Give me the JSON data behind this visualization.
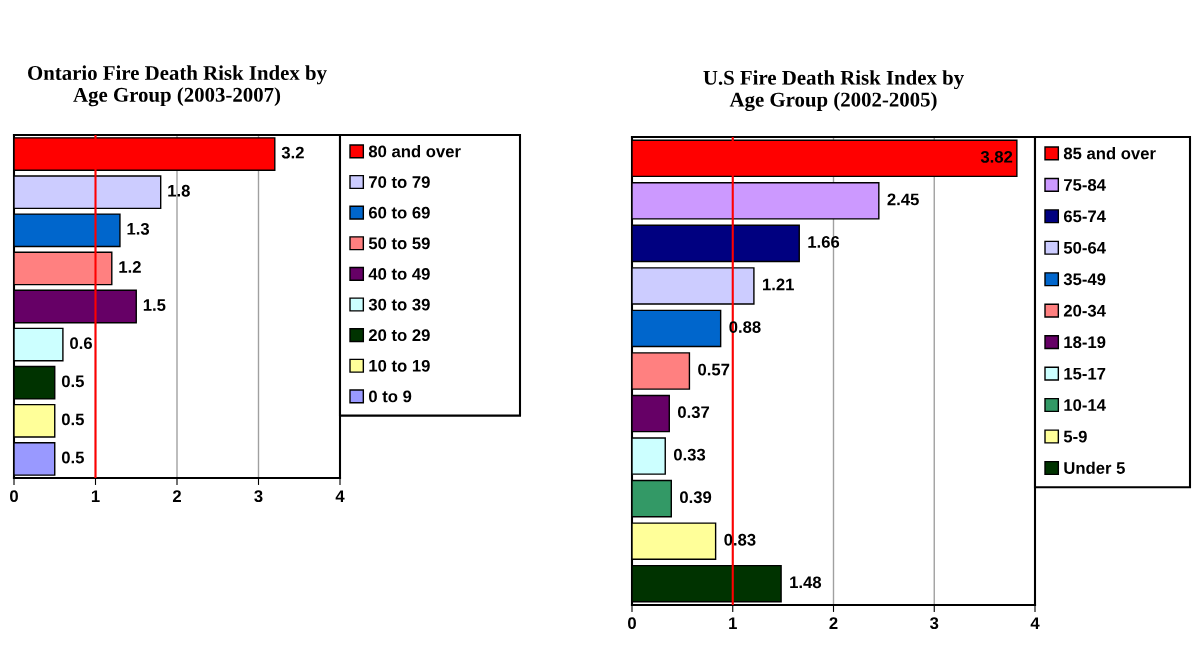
{
  "chart_data": [
    {
      "type": "bar",
      "orientation": "horizontal",
      "title": "Ontario Fire Death Risk Index by\nAge Group (2003-2007)",
      "categories": [
        null
      ],
      "series": [
        {
          "name": "80 and over",
          "color": "#ff0000",
          "values": [
            3.2
          ]
        },
        {
          "name": "70 to 79",
          "color": "#ccccff",
          "values": [
            1.8
          ]
        },
        {
          "name": "60 to 69",
          "color": "#0066cc",
          "values": [
            1.3
          ]
        },
        {
          "name": "50 to 59",
          "color": "#ff8080",
          "values": [
            1.2
          ]
        },
        {
          "name": "40 to 49",
          "color": "#660066",
          "values": [
            1.5
          ]
        },
        {
          "name": "30 to 39",
          "color": "#ccffff",
          "values": [
            0.6
          ]
        },
        {
          "name": "20 to 29",
          "color": "#003300",
          "values": [
            0.5
          ]
        },
        {
          "name": "10 to 19",
          "color": "#ffff99",
          "values": [
            0.5
          ]
        },
        {
          "name": "0 to 9",
          "color": "#9999ff",
          "values": [
            0.5
          ]
        }
      ],
      "xlim": [
        0,
        4
      ],
      "xticks": [
        0,
        1,
        2,
        3,
        4
      ],
      "grid": "x",
      "legend": "right",
      "data_labels": true,
      "tick_labels": "x",
      "ref_lines": [
        {
          "axis": "x",
          "value": 1,
          "color": "#ff0000"
        }
      ]
    },
    {
      "type": "bar",
      "orientation": "horizontal",
      "title": "U.S Fire Death Risk Index by\nAge Group (2002-2005)",
      "categories": [
        null
      ],
      "series": [
        {
          "name": "85 and over",
          "color": "#ff0000",
          "values": [
            3.82
          ]
        },
        {
          "name": "75-84",
          "color": "#cc99ff",
          "values": [
            2.45
          ]
        },
        {
          "name": "65-74",
          "color": "#000080",
          "values": [
            1.66
          ]
        },
        {
          "name": "50-64",
          "color": "#ccccff",
          "values": [
            1.21
          ]
        },
        {
          "name": "35-49",
          "color": "#0066cc",
          "values": [
            0.88
          ]
        },
        {
          "name": "20-34",
          "color": "#ff8080",
          "values": [
            0.57
          ]
        },
        {
          "name": "18-19",
          "color": "#660066",
          "values": [
            0.37
          ]
        },
        {
          "name": "15-17",
          "color": "#ccffff",
          "values": [
            0.33
          ]
        },
        {
          "name": "10-14",
          "color": "#339966",
          "values": [
            0.39
          ]
        },
        {
          "name": "5-9",
          "color": "#ffff99",
          "values": [
            0.83
          ]
        },
        {
          "name": "Under 5",
          "color": "#003300",
          "values": [
            1.48
          ]
        }
      ],
      "xlim": [
        0,
        4
      ],
      "xticks": [
        0,
        1,
        2,
        3,
        4
      ],
      "grid": "x",
      "legend": "right",
      "data_labels": true,
      "tick_labels": "x",
      "ref_lines": [
        {
          "axis": "x",
          "value": 1,
          "color": "#ff0000"
        }
      ]
    }
  ]
}
